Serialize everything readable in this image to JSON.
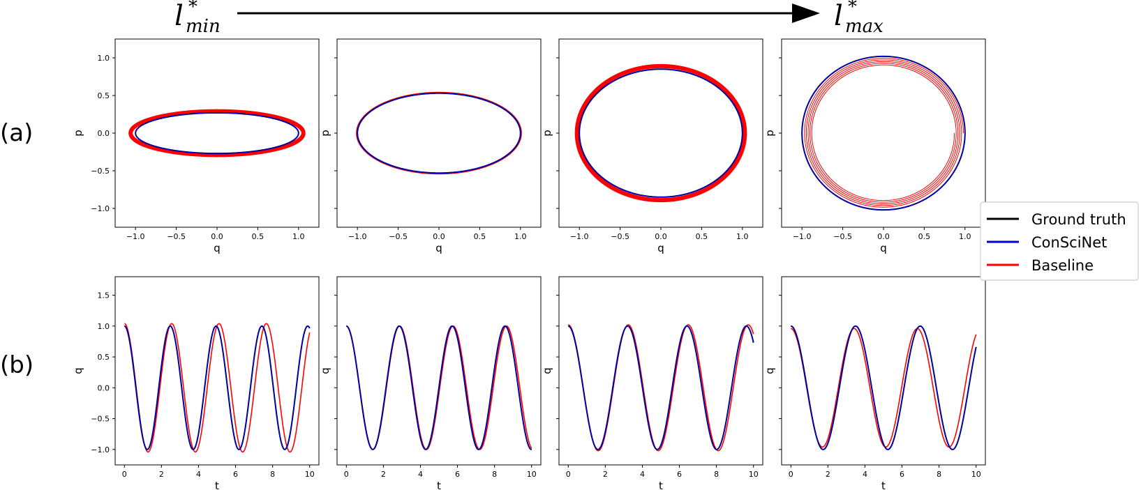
{
  "header": {
    "left_symbol": "l",
    "left_sup": "*",
    "left_sub": "min",
    "right_symbol": "l",
    "right_sup": "*",
    "right_sub": "max"
  },
  "row_labels": [
    "(a)",
    "(b)"
  ],
  "legend": {
    "placement": "right",
    "entries": [
      {
        "label": "Ground truth",
        "color": "#000000"
      },
      {
        "label": "ConSciNet",
        "color": "#0000cc"
      },
      {
        "label": "Baseline",
        "color": "#ff0000"
      }
    ]
  },
  "chart_data": [
    {
      "type": "line",
      "row": "a",
      "col": 1,
      "xlabel": "q",
      "ylabel": "p",
      "xlim": [
        -1.25,
        1.25
      ],
      "ylim": [
        -1.25,
        1.25
      ],
      "xticks": [
        "-1.0",
        "-0.5",
        "0.0",
        "0.5",
        "1.0"
      ],
      "yticks": [
        "1.0",
        "0.5",
        "0.0",
        "-0.5",
        "-1.0"
      ],
      "show_yticklabels": true,
      "series": [
        {
          "name": "Ground truth",
          "kind": "ellipse",
          "a": 1.0,
          "b": 0.27
        },
        {
          "name": "ConSciNet",
          "kind": "ellipse",
          "a": 1.0,
          "b": 0.27
        },
        {
          "name": "Baseline",
          "kind": "ellipse",
          "a": 1.06,
          "b": 0.29
        }
      ]
    },
    {
      "type": "line",
      "row": "a",
      "col": 2,
      "xlabel": "q",
      "ylabel": "p",
      "xlim": [
        -1.25,
        1.25
      ],
      "ylim": [
        -1.25,
        1.25
      ],
      "xticks": [
        "-1.0",
        "-0.5",
        "0.0",
        "0.5",
        "1.0"
      ],
      "yticks": [
        "1.0",
        "0.5",
        "0.0",
        "-0.5",
        "-1.0"
      ],
      "show_yticklabels": false,
      "series": [
        {
          "name": "Ground truth",
          "kind": "ellipse",
          "a": 1.0,
          "b": 0.53
        },
        {
          "name": "ConSciNet",
          "kind": "ellipse",
          "a": 1.0,
          "b": 0.53
        },
        {
          "name": "Baseline",
          "kind": "ellipse",
          "a": 1.01,
          "b": 0.54
        }
      ]
    },
    {
      "type": "line",
      "row": "a",
      "col": 3,
      "xlabel": "q",
      "ylabel": "p",
      "xlim": [
        -1.25,
        1.25
      ],
      "ylim": [
        -1.25,
        1.25
      ],
      "xticks": [
        "-1.0",
        "-0.5",
        "0.0",
        "0.5",
        "1.0"
      ],
      "yticks": [
        "1.0",
        "0.5",
        "0.0",
        "-0.5",
        "-1.0"
      ],
      "show_yticklabels": false,
      "series": [
        {
          "name": "Ground truth",
          "kind": "ellipse",
          "a": 1.0,
          "b": 0.85
        },
        {
          "name": "ConSciNet",
          "kind": "ellipse",
          "a": 1.0,
          "b": 0.85
        },
        {
          "name": "Baseline",
          "kind": "ellipse",
          "a": 1.03,
          "b": 0.89
        }
      ]
    },
    {
      "type": "line",
      "row": "a",
      "col": 4,
      "xlabel": "q",
      "ylabel": "p",
      "xlim": [
        -1.25,
        1.25
      ],
      "ylim": [
        -1.25,
        1.25
      ],
      "xticks": [
        "-1.0",
        "-0.5",
        "0.0",
        "0.5",
        "1.0"
      ],
      "yticks": [
        "1.0",
        "0.5",
        "0.0",
        "-0.5",
        "-1.0"
      ],
      "show_yticklabels": false,
      "series": [
        {
          "name": "Ground truth",
          "kind": "ellipse",
          "a": 1.0,
          "b": 1.02
        },
        {
          "name": "ConSciNet",
          "kind": "ellipse",
          "a": 1.0,
          "b": 1.02
        },
        {
          "name": "Baseline",
          "kind": "spiral",
          "a_outer": 0.98,
          "b_outer": 1.0,
          "a_inner": 0.87,
          "b_inner": 0.89,
          "turns": 5
        }
      ]
    },
    {
      "type": "line",
      "row": "b",
      "col": 1,
      "xlabel": "t",
      "ylabel": "q",
      "xlim": [
        -0.5,
        10.5
      ],
      "ylim": [
        -1.25,
        1.8
      ],
      "xticks": [
        "0",
        "2",
        "4",
        "6",
        "8",
        "10"
      ],
      "yticks": [
        "1.5",
        "1.0",
        "0.5",
        "0.0",
        "-0.5",
        "-1.0"
      ],
      "show_yticklabels": true,
      "series": [
        {
          "name": "Ground truth",
          "kind": "cosine",
          "omega": 2.54,
          "amp": 1.0,
          "t_max": 10
        },
        {
          "name": "ConSciNet",
          "kind": "cosine",
          "omega": 2.54,
          "amp": 1.0,
          "t_max": 10
        },
        {
          "name": "Baseline",
          "kind": "cosine",
          "omega": 2.46,
          "amp": 1.04,
          "t_max": 10
        }
      ]
    },
    {
      "type": "line",
      "row": "b",
      "col": 2,
      "xlabel": "t",
      "ylabel": "q",
      "xlim": [
        -0.5,
        10.5
      ],
      "ylim": [
        -1.25,
        1.8
      ],
      "xticks": [
        "0",
        "2",
        "4",
        "6",
        "8",
        "10"
      ],
      "yticks": [
        "1.5",
        "1.0",
        "0.5",
        "0.0",
        "-0.5",
        "-1.0"
      ],
      "show_yticklabels": false,
      "series": [
        {
          "name": "Ground truth",
          "kind": "cosine",
          "omega": 2.2,
          "amp": 1.0,
          "t_max": 10
        },
        {
          "name": "ConSciNet",
          "kind": "cosine",
          "omega": 2.2,
          "amp": 1.0,
          "t_max": 10
        },
        {
          "name": "Baseline",
          "kind": "cosine",
          "omega": 2.18,
          "amp": 1.0,
          "t_max": 10
        }
      ]
    },
    {
      "type": "line",
      "row": "b",
      "col": 3,
      "xlabel": "t",
      "ylabel": "q",
      "xlim": [
        -0.5,
        10.5
      ],
      "ylim": [
        -1.25,
        1.8
      ],
      "xticks": [
        "0",
        "2",
        "4",
        "6",
        "8",
        "10"
      ],
      "yticks": [
        "1.5",
        "1.0",
        "0.5",
        "0.0",
        "-0.5",
        "-1.0"
      ],
      "show_yticklabels": false,
      "series": [
        {
          "name": "Ground truth",
          "kind": "cosine",
          "omega": 1.96,
          "amp": 1.0,
          "t_max": 10
        },
        {
          "name": "ConSciNet",
          "kind": "cosine",
          "omega": 1.96,
          "amp": 1.0,
          "t_max": 10
        },
        {
          "name": "Baseline",
          "kind": "cosine",
          "omega": 1.94,
          "amp": 1.02,
          "t_max": 10
        }
      ]
    },
    {
      "type": "line",
      "row": "b",
      "col": 4,
      "xlabel": "t",
      "ylabel": "q",
      "xlim": [
        -0.5,
        10.5
      ],
      "ylim": [
        -1.25,
        1.8
      ],
      "xticks": [
        "0",
        "2",
        "4",
        "6",
        "8",
        "10"
      ],
      "yticks": [
        "1.5",
        "1.0",
        "0.5",
        "0.0",
        "-0.5",
        "-1.0"
      ],
      "show_yticklabels": false,
      "series": [
        {
          "name": "Ground truth",
          "kind": "cosine",
          "omega": 1.8,
          "amp": 1.0,
          "t_max": 10
        },
        {
          "name": "ConSciNet",
          "kind": "cosine",
          "omega": 1.8,
          "amp": 1.0,
          "t_max": 10
        },
        {
          "name": "Baseline",
          "kind": "cosine",
          "omega": 1.84,
          "amp": 0.96,
          "t_max": 10
        }
      ]
    }
  ]
}
